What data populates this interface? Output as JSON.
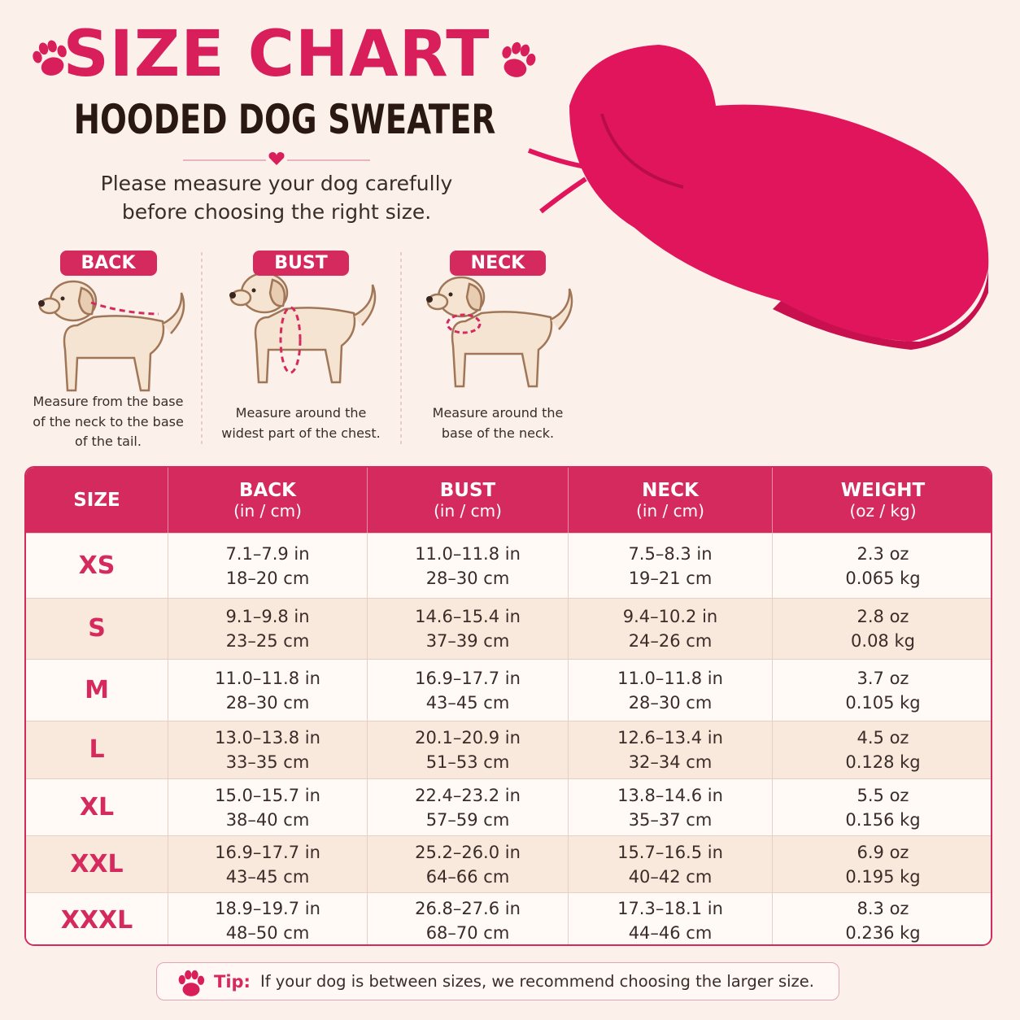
{
  "header": {
    "title": "SIZE CHART",
    "subtitle": "HOODED DOG SWEATER",
    "intro": [
      "Please measure your dog carefully",
      "before choosing the right size."
    ]
  },
  "measures": [
    {
      "label": "BACK",
      "text": [
        "Measure from the base",
        "of the neck to the base",
        "of the tail."
      ]
    },
    {
      "label": "BUST",
      "text": [
        "Measure around the",
        "widest part of the chest."
      ]
    },
    {
      "label": "NECK",
      "text": [
        "Measure around the",
        "base of the neck."
      ]
    }
  ],
  "table": {
    "columns": [
      {
        "name": "SIZE"
      },
      {
        "name": "BACK",
        "unit": "(in / cm)"
      },
      {
        "name": "BUST",
        "unit": "(in / cm)"
      },
      {
        "name": "NECK",
        "unit": "(in / cm)"
      },
      {
        "name": "WEIGHT",
        "unit": "(oz / kg)"
      }
    ],
    "rows": [
      {
        "size": "XS",
        "cells": [
          [
            "7.1–7.9 in",
            "18–20 cm"
          ],
          [
            "11.0–11.8 in",
            "28–30 cm"
          ],
          [
            "7.5–8.3 in",
            "19–21 cm"
          ],
          [
            "2.3 oz",
            "0.065 kg"
          ]
        ]
      },
      {
        "size": "S",
        "cells": [
          [
            "9.1–9.8 in",
            "23–25 cm"
          ],
          [
            "14.6–15.4 in",
            "37–39 cm"
          ],
          [
            "9.4–10.2 in",
            "24–26 cm"
          ],
          [
            "2.8 oz",
            "0.08 kg"
          ]
        ]
      },
      {
        "size": "M",
        "cells": [
          [
            "11.0–11.8 in",
            "28–30 cm"
          ],
          [
            "16.9–17.7 in",
            "43–45 cm"
          ],
          [
            "11.0–11.8 in",
            "28–30 cm"
          ],
          [
            "3.7 oz",
            "0.105 kg"
          ]
        ]
      },
      {
        "size": "L",
        "cells": [
          [
            "13.0–13.8 in",
            "33–35 cm"
          ],
          [
            "20.1–20.9 in",
            "51–53 cm"
          ],
          [
            "12.6–13.4 in",
            "32–34 cm"
          ],
          [
            "4.5 oz",
            "0.128 kg"
          ]
        ]
      },
      {
        "size": "XL",
        "cells": [
          [
            "15.0–15.7 in",
            "38–40 cm"
          ],
          [
            "22.4–23.2 in",
            "57–59 cm"
          ],
          [
            "13.8–14.6 in",
            "35–37 cm"
          ],
          [
            "5.5 oz",
            "0.156 kg"
          ]
        ]
      },
      {
        "size": "XXL",
        "cells": [
          [
            "16.9–17.7 in",
            "43–45 cm"
          ],
          [
            "25.2–26.0 in",
            "64–66 cm"
          ],
          [
            "15.7–16.5 in",
            "40–42 cm"
          ],
          [
            "6.9 oz",
            "0.195 kg"
          ]
        ]
      },
      {
        "size": "XXXL",
        "cells": [
          [
            "18.9–19.7 in",
            "48–50 cm"
          ],
          [
            "26.8–27.6 in",
            "68–70 cm"
          ],
          [
            "17.3–18.1 in",
            "44–46 cm"
          ],
          [
            "8.3 oz",
            "0.236 kg"
          ]
        ]
      }
    ]
  },
  "tip": {
    "label": "Tip:",
    "text": "If your dog is between sizes, we recommend choosing the larger size."
  }
}
